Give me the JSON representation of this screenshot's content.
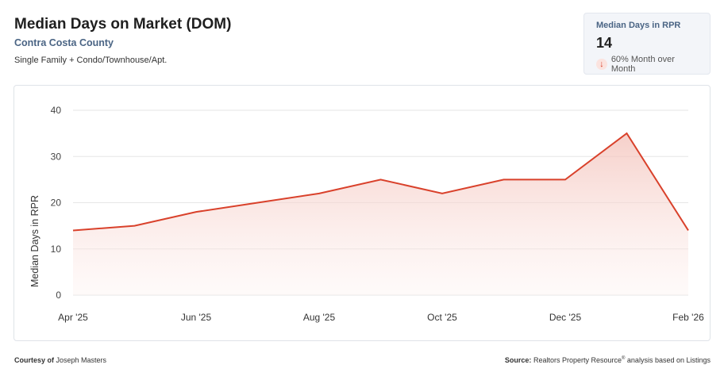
{
  "header": {
    "title": "Median Days on Market (DOM)",
    "subtitle": "Contra Costa County",
    "description": "Single Family + Condo/Townhouse/Apt."
  },
  "kpi": {
    "label": "Median Days in RPR",
    "value": "14",
    "change": "60% Month over Month",
    "arrow": "arrow-down-icon"
  },
  "footer": {
    "courtesy_label": "Courtesy of",
    "courtesy_name": "Joseph Masters",
    "source_label": "Source:",
    "source_text": "Realtors Property Resource",
    "source_reg": "®",
    "source_tail": " analysis based on Listings"
  },
  "chart_data": {
    "type": "area",
    "ylabel": "Median Days in RPR",
    "ylim": [
      0,
      40
    ],
    "yticks": [
      0,
      10,
      20,
      30,
      40
    ],
    "x": [
      "Apr '25",
      "May '25",
      "Jun '25",
      "Jul '25",
      "Aug '25",
      "Sep '25",
      "Oct '25",
      "Nov '25",
      "Dec '25",
      "Jan '26",
      "Feb '26"
    ],
    "xtick_labels": [
      "Apr '25",
      "Jun '25",
      "Aug '25",
      "Oct '25",
      "Dec '25",
      "Feb '26"
    ],
    "values": [
      14,
      15,
      18,
      20,
      22,
      25,
      22,
      25,
      25,
      35,
      14
    ],
    "line_color": "#d9412b",
    "fill_color": "#f3c6c0",
    "grid": true
  }
}
